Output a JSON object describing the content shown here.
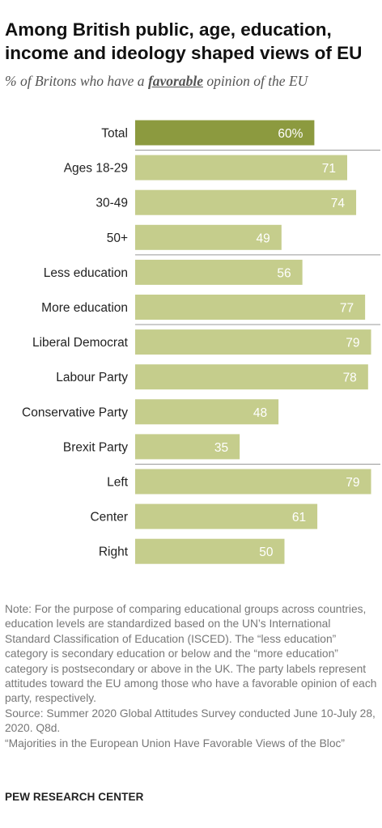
{
  "title": "Among British public, age, education, income and ideology shaped views of EU",
  "subtitle": {
    "before": "% of Britons who have a ",
    "emphasis": "favorable",
    "after": " opinion of the EU"
  },
  "chart_data": {
    "type": "bar",
    "orientation": "horizontal",
    "title": "Among British public, age, education, income and ideology shaped views of EU",
    "subtitle": "% of Britons who have a favorable opinion of the EU",
    "categories": [
      "Total",
      "Ages 18-29",
      "30-49",
      "50+",
      "Less education",
      "More education",
      "Liberal Democrat",
      "Labour Party",
      "Conservative Party",
      "Brexit Party",
      "Left",
      "Center",
      "Right"
    ],
    "values": [
      60,
      71,
      74,
      49,
      56,
      77,
      79,
      78,
      48,
      35,
      79,
      61,
      50
    ],
    "value_labels": [
      "60%",
      "71",
      "74",
      "49",
      "56",
      "77",
      "79",
      "78",
      "48",
      "35",
      "79",
      "61",
      "50"
    ],
    "groups": [
      {
        "categories": [
          "Total"
        ]
      },
      {
        "categories": [
          "Ages 18-29",
          "30-49",
          "50+"
        ]
      },
      {
        "categories": [
          "Less education",
          "More education"
        ]
      },
      {
        "categories": [
          "Liberal Democrat",
          "Labour Party",
          "Conservative Party",
          "Brexit Party"
        ]
      },
      {
        "categories": [
          "Left",
          "Center",
          "Right"
        ]
      }
    ],
    "xlim": [
      0,
      100
    ],
    "xlabel": "",
    "ylabel": "",
    "grid": false,
    "colors": {
      "total_bar": "#8c9a3f",
      "bar": "#c5cd8c",
      "label": "#ffffff",
      "separator": "#999999"
    }
  },
  "notes": [
    "Note: For the purpose of comparing educational groups across countries, education levels are standardized based on the UN’s International Standard Classification of Education (ISCED). The “less education” category is secondary education or below and the “more education” category is postsecondary or above in the UK. The party labels represent attitudes toward the EU among those who have a favorable opinion of each party, respectively.",
    "Source: Summer 2020 Global Attitudes Survey conducted June 10-July 28, 2020. Q8d.",
    "“Majorities in the European Union Have Favorable Views of the Bloc”"
  ],
  "brand": "PEW RESEARCH CENTER"
}
